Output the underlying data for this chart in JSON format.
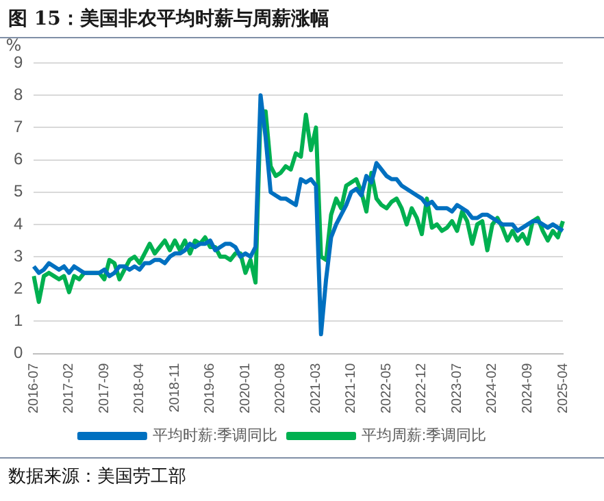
{
  "chart_data": {
    "type": "line",
    "title": "图 15：美国非农平均时薪与周薪涨幅",
    "ylabel": "%",
    "categories": [
      "2016-07",
      null,
      null,
      null,
      null,
      null,
      null,
      "2017-02",
      null,
      null,
      null,
      null,
      null,
      null,
      "2017-09",
      null,
      null,
      null,
      null,
      null,
      null,
      "2018-04",
      null,
      null,
      null,
      null,
      null,
      null,
      "2018-11",
      null,
      null,
      null,
      null,
      null,
      null,
      "2019-06",
      null,
      null,
      null,
      null,
      null,
      null,
      "2020-01",
      null,
      null,
      null,
      null,
      null,
      null,
      "2020-08",
      null,
      null,
      null,
      null,
      null,
      null,
      "2021-03",
      null,
      null,
      null,
      null,
      null,
      null,
      "2021-10",
      null,
      null,
      null,
      null,
      null,
      null,
      "2022-05",
      null,
      null,
      null,
      null,
      null,
      null,
      "2022-12",
      null,
      null,
      null,
      null,
      null,
      null,
      "2023-07",
      null,
      null,
      null,
      null,
      null,
      null,
      "2024-02",
      null,
      null,
      null,
      null,
      null,
      null,
      "2024-09",
      null,
      null,
      null,
      null,
      null,
      null,
      "2025-04"
    ],
    "series": [
      {
        "name": "平均时薪:季调同比",
        "color": "#0070c0",
        "values": [
          2.7,
          2.5,
          2.6,
          2.8,
          2.7,
          2.6,
          2.7,
          2.5,
          2.7,
          2.6,
          2.5,
          2.5,
          2.5,
          2.5,
          2.6,
          2.4,
          2.5,
          2.7,
          2.7,
          2.6,
          2.7,
          2.6,
          2.8,
          2.8,
          2.9,
          2.9,
          2.8,
          3.0,
          3.1,
          3.1,
          3.2,
          3.4,
          3.3,
          3.4,
          3.4,
          3.5,
          3.2,
          3.3,
          3.4,
          3.4,
          3.3,
          3.0,
          3.1,
          3.0,
          3.3,
          8.0,
          6.7,
          5.0,
          4.9,
          4.8,
          4.8,
          4.7,
          4.6,
          5.4,
          5.3,
          5.4,
          5.2,
          0.6,
          2.3,
          3.6,
          4.0,
          4.3,
          4.6,
          5.0,
          5.1,
          4.9,
          5.5,
          5.3,
          5.9,
          5.7,
          5.5,
          5.4,
          5.4,
          5.2,
          5.1,
          5.0,
          4.9,
          4.8,
          4.6,
          4.7,
          4.5,
          4.5,
          4.5,
          4.4,
          4.6,
          4.5,
          4.4,
          4.2,
          4.2,
          4.3,
          4.3,
          4.2,
          4.1,
          4.0,
          4.0,
          4.0,
          3.8,
          3.9,
          4.0,
          4.1,
          4.1,
          4.0,
          3.9,
          4.0,
          3.9,
          3.8
        ]
      },
      {
        "name": "平均周薪:季调同比",
        "color": "#00b050",
        "values": [
          2.4,
          1.6,
          2.4,
          2.5,
          2.4,
          2.3,
          2.4,
          1.9,
          2.4,
          2.3,
          2.5,
          2.5,
          2.5,
          2.5,
          2.3,
          2.9,
          2.8,
          2.3,
          2.6,
          2.9,
          3.0,
          2.8,
          3.1,
          3.4,
          3.1,
          3.3,
          3.5,
          3.2,
          3.5,
          3.2,
          3.5,
          3.1,
          3.5,
          3.4,
          3.6,
          3.3,
          3.3,
          3.0,
          3.0,
          2.9,
          3.1,
          3.1,
          2.5,
          2.9,
          2.2,
          7.5,
          7.5,
          5.8,
          5.5,
          5.6,
          5.8,
          5.7,
          6.2,
          6.1,
          7.4,
          6.3,
          7.0,
          3.0,
          2.9,
          4.3,
          4.8,
          4.5,
          5.2,
          5.3,
          5.4,
          5.0,
          4.4,
          5.6,
          4.8,
          4.6,
          4.5,
          4.7,
          4.8,
          4.5,
          4.0,
          4.5,
          4.2,
          3.7,
          4.8,
          3.9,
          4.0,
          3.8,
          3.9,
          4.1,
          3.8,
          4.4,
          4.1,
          3.4,
          4.0,
          4.1,
          3.2,
          4.0,
          4.2,
          3.9,
          3.5,
          3.8,
          3.5,
          3.7,
          3.4,
          4.1,
          4.2,
          3.8,
          3.5,
          3.8,
          3.6,
          4.1
        ]
      }
    ],
    "ylim": [
      0,
      9
    ],
    "yticks": [
      0,
      1,
      2,
      3,
      4,
      5,
      6,
      7,
      8,
      9
    ],
    "grid": "y",
    "legend": "bottom",
    "marker": "none",
    "line_style": "solid",
    "annotations": [
      "数据来源：美国劳工部"
    ]
  }
}
